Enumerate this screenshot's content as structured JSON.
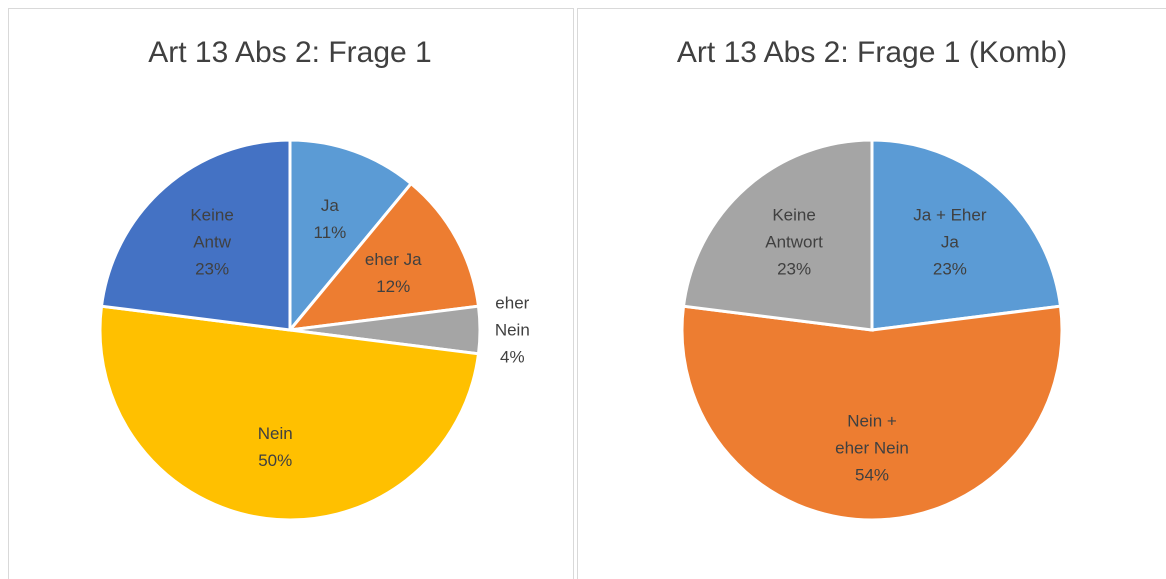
{
  "chart_data": [
    {
      "type": "pie",
      "title": "Art 13 Abs 2: Frage 1",
      "categories": [
        "Ja",
        "eher Ja",
        "eher Nein",
        "Nein",
        "Keine Antw"
      ],
      "values": [
        11,
        12,
        4,
        50,
        23
      ],
      "value_labels": [
        "11%",
        "12%",
        "4%",
        "50%",
        "23%"
      ],
      "colors": [
        "#5b9bd5",
        "#ed7d31",
        "#a5a5a5",
        "#ffc000",
        "#4472c4"
      ]
    },
    {
      "type": "pie",
      "title": "Art 13 Abs 2: Frage 1 (Komb)",
      "categories": [
        "Ja + Eher Ja",
        "Nein + eher Nein",
        "Keine Antwort"
      ],
      "values": [
        23,
        54,
        23
      ],
      "value_labels": [
        "23%",
        "54%",
        "23%"
      ],
      "colors": [
        "#5b9bd5",
        "#ed7d31",
        "#a5a5a5"
      ]
    }
  ]
}
